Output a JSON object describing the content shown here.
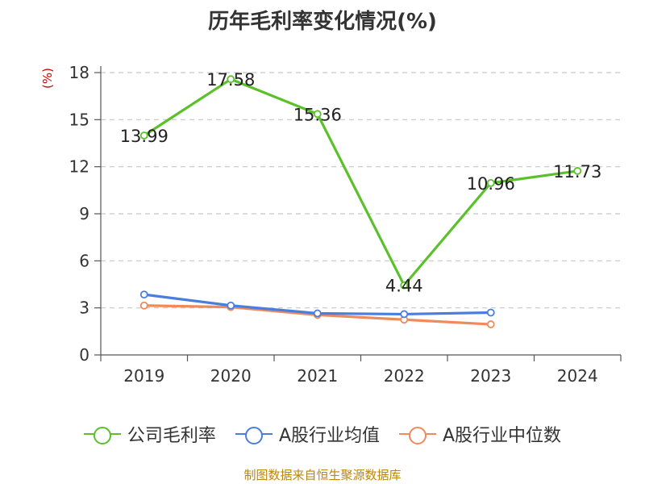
{
  "title": "历年毛利率变化情况(%)",
  "unit_label": "(%)",
  "source": "制图数据来自恒生聚源数据库",
  "colors": {
    "company": "#5bc12b",
    "industry_avg": "#4a7ede",
    "industry_median": "#f08a5b",
    "grid": "#c8c8c8",
    "axis": "#555555"
  },
  "chart_data": {
    "type": "line",
    "title": "历年毛利率变化情况(%)",
    "ylabel": "(%)",
    "xlabel": "",
    "categories": [
      "2019",
      "2020",
      "2021",
      "2022",
      "2023",
      "2024"
    ],
    "ylim": [
      0,
      18
    ],
    "yticks": [
      0,
      3,
      6,
      9,
      12,
      15,
      18
    ],
    "grid": true,
    "legend_position": "bottom",
    "series": [
      {
        "name": "公司毛利率",
        "values": [
          13.99,
          17.58,
          15.36,
          4.44,
          10.96,
          11.73
        ],
        "labels": [
          "13.99",
          "17.58",
          "15.36",
          "4.44",
          "10.96",
          "11.73"
        ]
      },
      {
        "name": "A股行业均值",
        "values": [
          3.85,
          3.15,
          2.65,
          2.6,
          2.7,
          null
        ]
      },
      {
        "name": "A股行业中位数",
        "values": [
          3.15,
          3.05,
          2.55,
          2.25,
          1.95,
          null
        ]
      }
    ]
  }
}
